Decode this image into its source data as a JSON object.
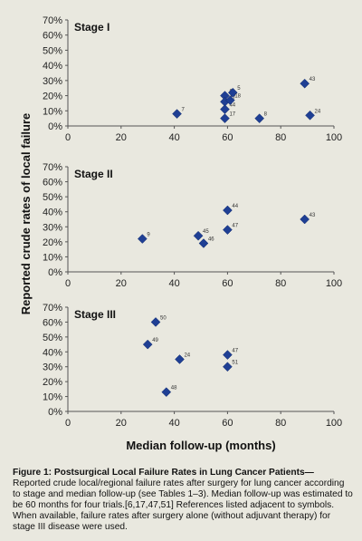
{
  "chart_data": {
    "type": "scatter",
    "xlabel": "Median follow-up (months)",
    "ylabel": "Reported crude rates of local failure",
    "xlim": [
      0,
      100
    ],
    "xticks": [
      "0",
      "20",
      "40",
      "60",
      "80",
      "100"
    ],
    "panels": [
      {
        "title": "Stage I",
        "ylim": [
          0,
          70
        ],
        "yticks": [
          "0%",
          "10%",
          "20%",
          "30%",
          "40%",
          "50%",
          "60%",
          "70%"
        ],
        "points": [
          {
            "x": 41,
            "y": 8,
            "label": "7"
          },
          {
            "x": 59,
            "y": 20,
            "label": "6"
          },
          {
            "x": 59,
            "y": 16,
            "label": "47"
          },
          {
            "x": 59,
            "y": 11,
            "label": "44"
          },
          {
            "x": 59,
            "y": 5,
            "label": "17"
          },
          {
            "x": 62,
            "y": 22,
            "label": "5"
          },
          {
            "x": 61,
            "y": 17,
            "label": "18"
          },
          {
            "x": 72,
            "y": 5,
            "label": "8"
          },
          {
            "x": 89,
            "y": 28,
            "label": "43"
          },
          {
            "x": 91,
            "y": 7,
            "label": "24"
          }
        ]
      },
      {
        "title": "Stage II",
        "ylim": [
          0,
          70
        ],
        "yticks": [
          "0%",
          "10%",
          "20%",
          "30%",
          "40%",
          "50%",
          "60%",
          "70%"
        ],
        "points": [
          {
            "x": 28,
            "y": 22,
            "label": "9"
          },
          {
            "x": 49,
            "y": 24,
            "label": "45"
          },
          {
            "x": 51,
            "y": 19,
            "label": "46"
          },
          {
            "x": 60,
            "y": 41,
            "label": "44"
          },
          {
            "x": 60,
            "y": 28,
            "label": "47"
          },
          {
            "x": 89,
            "y": 35,
            "label": "43"
          }
        ]
      },
      {
        "title": "Stage III",
        "ylim": [
          0,
          70
        ],
        "yticks": [
          "0%",
          "10%",
          "20%",
          "30%",
          "40%",
          "50%",
          "60%",
          "70%"
        ],
        "points": [
          {
            "x": 33,
            "y": 60,
            "label": "50"
          },
          {
            "x": 30,
            "y": 45,
            "label": "49"
          },
          {
            "x": 42,
            "y": 35,
            "label": "24"
          },
          {
            "x": 37,
            "y": 13,
            "label": "48"
          },
          {
            "x": 60,
            "y": 38,
            "label": "47"
          },
          {
            "x": 60,
            "y": 30,
            "label": "51"
          }
        ]
      }
    ],
    "marker_color": "#1f3f94",
    "grid": false
  },
  "caption": {
    "title": "Figure 1: Postsurgical Local Failure Rates in Lung Cancer Patients—",
    "text": "Reported crude local/regional failure rates after surgery for lung cancer according to stage and median follow-up (see Tables 1–3). Median follow-up was estimated to be 60 months for four trials.[6,17,47,51] References listed adjacent to symbols. When available, failure rates after surgery alone (without adjuvant therapy) for stage III disease were used."
  }
}
